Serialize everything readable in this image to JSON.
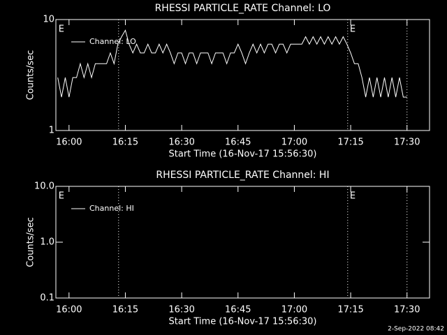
{
  "chart_data": [
    {
      "type": "line",
      "title": "RHESSI PARTICLE_RATE Channel: LO",
      "xlabel": "Start Time (16-Nov-17 15:56:30)",
      "ylabel": "Counts/sec",
      "x": [
        957,
        958,
        959,
        960,
        961,
        962,
        963,
        964,
        965,
        966,
        967,
        968,
        969,
        970,
        971,
        972,
        973,
        974,
        975,
        976,
        977,
        978,
        979,
        980,
        981,
        982,
        983,
        984,
        985,
        986,
        987,
        988,
        989,
        990,
        991,
        992,
        993,
        994,
        995,
        996,
        997,
        998,
        999,
        1000,
        1001,
        1002,
        1003,
        1004,
        1005,
        1006,
        1007,
        1008,
        1009,
        1010,
        1011,
        1012,
        1013,
        1014,
        1015,
        1016,
        1017,
        1018,
        1019,
        1020,
        1021,
        1022,
        1023,
        1024,
        1025,
        1026,
        1027,
        1028,
        1029,
        1030,
        1031,
        1032,
        1033,
        1034,
        1035,
        1036,
        1037,
        1038,
        1039,
        1040,
        1041,
        1042,
        1043,
        1044,
        1045,
        1046,
        1047,
        1048,
        1049,
        1050
      ],
      "series": [
        {
          "name": "Channel: LO",
          "color": "#ffffff",
          "values": [
            3,
            2,
            3,
            2,
            3,
            3,
            4,
            3,
            4,
            3,
            4,
            4,
            4,
            4,
            5,
            4,
            6,
            7,
            8,
            6,
            5,
            6,
            5,
            5,
            6,
            5,
            5,
            6,
            5,
            6,
            5,
            4,
            5,
            5,
            4,
            5,
            5,
            4,
            5,
            5,
            5,
            4,
            5,
            5,
            5,
            4,
            5,
            5,
            6,
            5,
            4,
            5,
            6,
            5,
            6,
            5,
            6,
            6,
            5,
            6,
            6,
            5,
            6,
            6,
            6,
            6,
            7,
            6,
            7,
            6,
            7,
            6,
            7,
            6,
            7,
            6,
            7,
            6,
            5,
            4,
            4,
            3,
            2,
            3,
            2,
            3,
            2,
            3,
            2,
            3,
            2,
            3,
            2,
            2
          ]
        }
      ],
      "xlim": [
        956.5,
        1056
      ],
      "xticks": [
        {
          "value": 960,
          "label": "16:00"
        },
        {
          "value": 975,
          "label": "16:15"
        },
        {
          "value": 990,
          "label": "16:30"
        },
        {
          "value": 1005,
          "label": "16:45"
        },
        {
          "value": 1020,
          "label": "17:00"
        },
        {
          "value": 1035,
          "label": "17:15"
        },
        {
          "value": 1050,
          "label": "17:30"
        }
      ],
      "ylim": [
        1,
        10
      ],
      "yticks": [
        1,
        10
      ],
      "log_y": true,
      "legend": "upper left",
      "vlines": [
        973.2,
        1034.2,
        1050
      ],
      "annotations": [
        {
          "text": "E",
          "x": 957
        },
        {
          "text": "E",
          "x": 1034.6
        }
      ]
    },
    {
      "type": "line",
      "title": "RHESSI PARTICLE_RATE Channel: HI",
      "xlabel": "Start Time (16-Nov-17 15:56:30)",
      "ylabel": "Counts/sec",
      "x": [],
      "series": [
        {
          "name": "Channel: HI",
          "color": "#ffffff",
          "values": []
        }
      ],
      "xlim": [
        956.5,
        1056
      ],
      "xticks": [
        {
          "value": 960,
          "label": "16:00"
        },
        {
          "value": 975,
          "label": "16:15"
        },
        {
          "value": 990,
          "label": "16:30"
        },
        {
          "value": 1005,
          "label": "16:45"
        },
        {
          "value": 1020,
          "label": "17:00"
        },
        {
          "value": 1035,
          "label": "17:15"
        },
        {
          "value": 1050,
          "label": "17:30"
        }
      ],
      "ylim": [
        0.1,
        10
      ],
      "yticks": [
        {
          "value": 0.1,
          "label": "0.1"
        },
        {
          "value": 1,
          "label": "1.0"
        },
        {
          "value": 10,
          "label": "10.0"
        }
      ],
      "log_y": true,
      "legend": "upper left",
      "vlines": [
        973.2,
        1034.2,
        1050
      ],
      "annotations": [
        {
          "text": "E",
          "x": 957
        },
        {
          "text": "E",
          "x": 1034.6
        }
      ]
    }
  ],
  "footer": "2-Sep-2022 08:42"
}
